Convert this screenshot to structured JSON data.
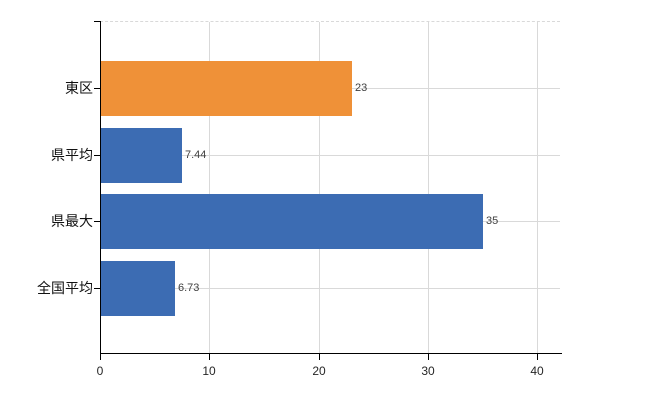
{
  "chart_data": {
    "type": "bar",
    "orientation": "horizontal",
    "title": "",
    "xlabel": "",
    "ylabel": "",
    "categories": [
      "東区",
      "県平均",
      "県最大",
      "全国平均"
    ],
    "values": [
      23,
      7.44,
      35,
      6.73
    ],
    "value_labels": [
      "23",
      "7.44",
      "35",
      "6.73"
    ],
    "bar_colors": [
      "#EF9138",
      "#3C6CB3",
      "#3C6CB3",
      "#3C6CB3"
    ],
    "x_ticks": [
      "0",
      "10",
      "20",
      "30",
      "40"
    ],
    "x_tick_values": [
      0,
      10,
      20,
      30,
      40
    ],
    "xlim": [
      0,
      42.1
    ],
    "grid": true,
    "legend": "none",
    "colors": {
      "background": "#FFFFFF",
      "gridline": "#D9D9D9",
      "axis": "#000000",
      "value_label": "#404040",
      "tick_label": "#262626",
      "category_label": "#111111"
    }
  }
}
